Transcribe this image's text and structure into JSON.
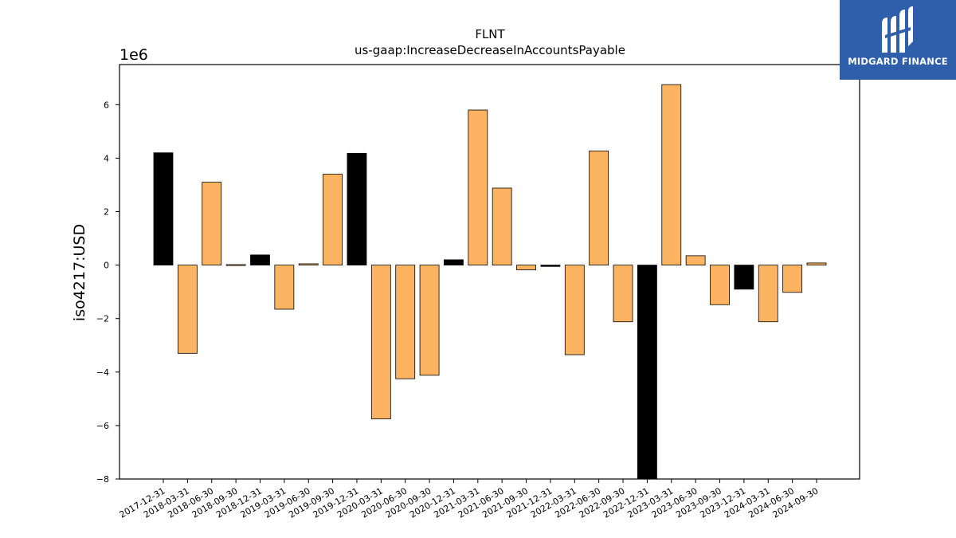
{
  "logo": {
    "text": "MIDGARD FINANCE",
    "icon": "midgard-logo-icon",
    "background": "#2f5eab"
  },
  "chart_data": {
    "type": "bar",
    "title": "FLNT",
    "subtitle": "us-gaap:IncreaseDecreaseInAccountsPayable",
    "ylabel": "iso4217:USD",
    "xlabel": "",
    "y_scale_label": "1e6",
    "y_multiplier": 1000000,
    "ylim": [
      -8,
      7.5
    ],
    "yticks": [
      -8,
      -6,
      -4,
      -2,
      0,
      2,
      4,
      6
    ],
    "ytick_labels": [
      "−8",
      "−6",
      "−4",
      "−2",
      "0",
      "2",
      "4",
      "6"
    ],
    "grid": false,
    "colors": {
      "fourth_quarter": "#000000",
      "other_quarters": "#fdb462"
    },
    "categories": [
      "2017-12-31",
      "2018-03-31",
      "2018-06-30",
      "2018-09-30",
      "2018-12-31",
      "2019-03-31",
      "2019-06-30",
      "2019-09-30",
      "2019-12-31",
      "2020-03-31",
      "2020-06-30",
      "2020-09-30",
      "2020-12-31",
      "2021-03-31",
      "2021-06-30",
      "2021-09-30",
      "2021-12-31",
      "2022-03-31",
      "2022-06-30",
      "2022-09-30",
      "2022-12-31",
      "2023-03-31",
      "2023-06-30",
      "2023-09-30",
      "2023-12-31",
      "2024-03-31",
      "2024-06-30",
      "2024-09-30"
    ],
    "values": [
      4.2,
      -3.3,
      3.1,
      0.02,
      0.38,
      -1.65,
      0.05,
      3.4,
      4.18,
      -5.75,
      -4.25,
      -4.12,
      0.2,
      5.8,
      2.88,
      -0.18,
      -0.05,
      -3.35,
      4.27,
      -2.12,
      -8.2,
      6.75,
      0.35,
      -1.48,
      -0.9,
      -2.12,
      -1.02,
      0.08
    ]
  }
}
